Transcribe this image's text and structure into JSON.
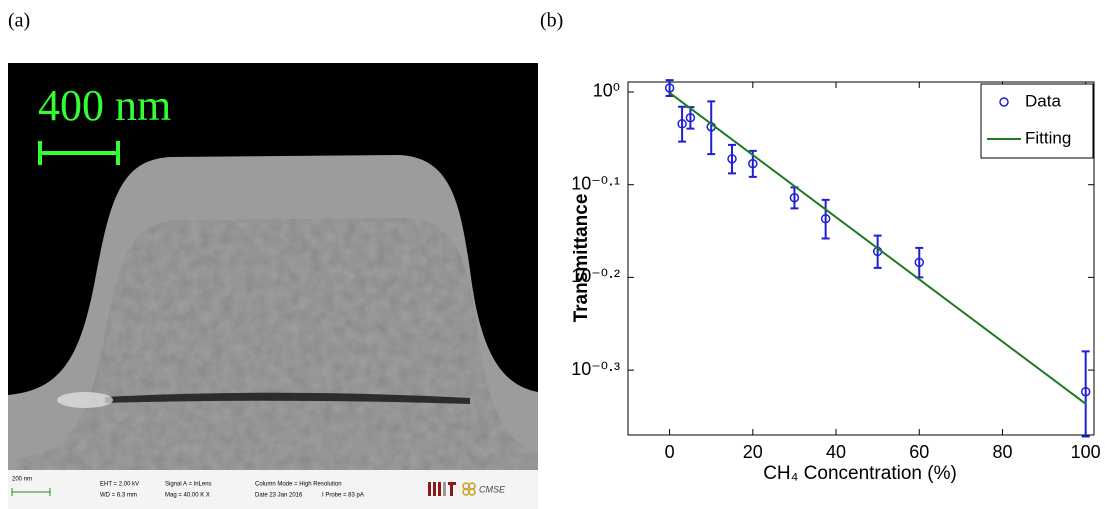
{
  "panel_labels": [
    "(a)",
    "(b)"
  ],
  "sem_image": {
    "scale_label": "400 nm",
    "info_bar": {
      "scale_text": "200 nm",
      "fields": [
        "EHT = 2.00 kV",
        "WD = 6.3 mm",
        "Signal A = InLens",
        "Mag = 40.00 K X",
        "Column Mode = High Resolution",
        "Date 23 Jan 2016",
        "I Probe = 83 pA"
      ],
      "logo_text": "CMSE"
    }
  },
  "chart_data": {
    "type": "scatter",
    "log_y": true,
    "xlabel": "CH₄ Concentration (%)",
    "ylabel": "Transmittance",
    "xlim": [
      -10,
      102
    ],
    "xticks": [
      0,
      20,
      40,
      60,
      80,
      100
    ],
    "ylim": [
      0.4266,
      1.0251
    ],
    "yticks": [
      {
        "value": 1,
        "label": "10⁰"
      },
      {
        "value": 0.7943,
        "label": "10⁻⁰·¹"
      },
      {
        "value": 0.631,
        "label": "10⁻⁰·²"
      },
      {
        "value": 0.5012,
        "label": "10⁻⁰·³"
      }
    ],
    "legend": "upper right",
    "series": [
      {
        "name": "Data",
        "color": "#1f1fd6",
        "style": "markers",
        "x": [
          0,
          3,
          5,
          10,
          15,
          20,
          30,
          37.5,
          50,
          60,
          100
        ],
        "values": [
          1.01,
          0.924,
          0.938,
          0.917,
          0.847,
          0.837,
          0.769,
          0.73,
          0.673,
          0.655,
          0.475
        ],
        "errors": [
          0.02,
          0.04,
          0.025,
          0.06,
          0.03,
          0.027,
          0.02,
          0.035,
          0.027,
          0.024,
          0.05
        ]
      },
      {
        "name": "Fitting",
        "color": "#1e7b1e",
        "style": "line",
        "x": [
          0,
          100
        ],
        "values": [
          0.998,
          0.461
        ]
      }
    ]
  }
}
